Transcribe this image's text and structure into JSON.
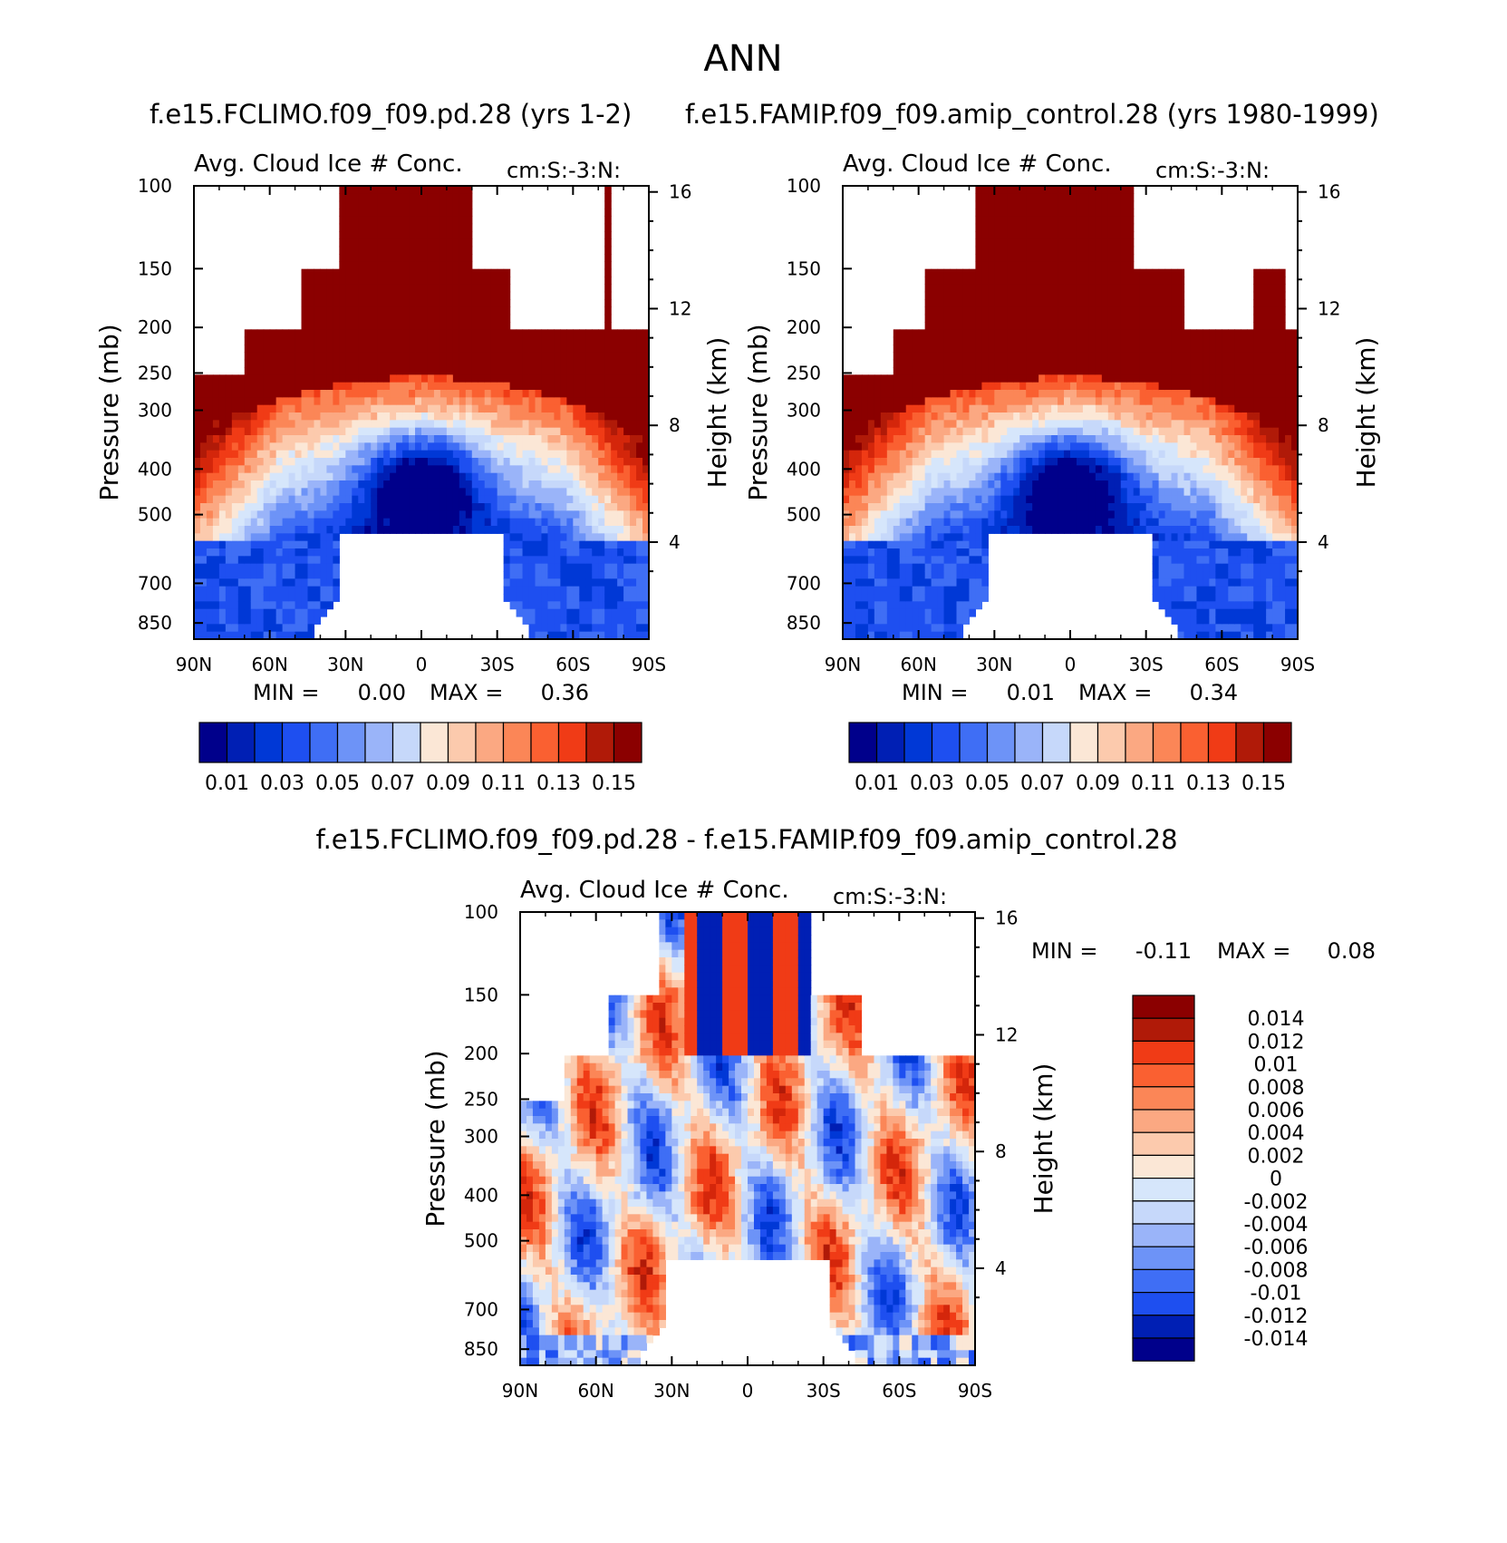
{
  "figure": {
    "title": "ANN",
    "panel_a_title": "f.e15.FCLIMO.f09_f09.pd.28 (yrs 1-2)",
    "panel_b_title": "f.e15.FAMIP.f09_f09.amip_control.28 (yrs 1980-1999)",
    "panel_c_title": "f.e15.FCLIMO.f09_f09.pd.28 - f.e15.FAMIP.f09_f09.amip_control.28"
  },
  "chart_data": [
    {
      "id": "a",
      "type": "heatmap",
      "title": "Avg. Cloud Ice # Conc.",
      "units": "cm:S:-3:N:",
      "xlabel": "",
      "ylabel": "Pressure (mb)",
      "ylabel_right": "Height (km)",
      "xticks": [
        "90N",
        "60N",
        "30N",
        "0",
        "30S",
        "60S",
        "90S"
      ],
      "yticks": [
        100,
        150,
        200,
        250,
        300,
        400,
        500,
        700,
        850
      ],
      "yticks_right": [
        16,
        12,
        8,
        4
      ],
      "stats": {
        "min_label": "MIN =",
        "min": "0.00",
        "max_label": "MAX =",
        "max": "0.36"
      },
      "colorbar": {
        "labels": [
          "0.01",
          "0.03",
          "0.05",
          "0.07",
          "0.09",
          "0.11",
          "0.13",
          "0.15"
        ],
        "levels": [
          0.01,
          0.02,
          0.03,
          0.04,
          0.05,
          0.06,
          0.07,
          0.08,
          0.09,
          0.1,
          0.11,
          0.12,
          0.13,
          0.14,
          0.15
        ]
      }
    },
    {
      "id": "b",
      "type": "heatmap",
      "title": "Avg. Cloud Ice # Conc.",
      "units": "cm:S:-3:N:",
      "xlabel": "",
      "ylabel": "Pressure (mb)",
      "ylabel_right": "Height (km)",
      "xticks": [
        "90N",
        "60N",
        "30N",
        "0",
        "30S",
        "60S",
        "90S"
      ],
      "yticks": [
        100,
        150,
        200,
        250,
        300,
        400,
        500,
        700,
        850
      ],
      "yticks_right": [
        16,
        12,
        8,
        4
      ],
      "stats": {
        "min_label": "MIN =",
        "min": "0.01",
        "max_label": "MAX =",
        "max": "0.34"
      },
      "colorbar": {
        "labels": [
          "0.01",
          "0.03",
          "0.05",
          "0.07",
          "0.09",
          "0.11",
          "0.13",
          "0.15"
        ],
        "levels": [
          0.01,
          0.02,
          0.03,
          0.04,
          0.05,
          0.06,
          0.07,
          0.08,
          0.09,
          0.1,
          0.11,
          0.12,
          0.13,
          0.14,
          0.15
        ]
      }
    },
    {
      "id": "c",
      "type": "heatmap",
      "title": "Avg. Cloud Ice # Conc.",
      "units": "cm:S:-3:N:",
      "xlabel": "",
      "ylabel": "Pressure (mb)",
      "ylabel_right": "Height (km)",
      "xticks": [
        "90N",
        "60N",
        "30N",
        "0",
        "30S",
        "60S",
        "90S"
      ],
      "yticks": [
        100,
        150,
        200,
        250,
        300,
        400,
        500,
        700,
        850
      ],
      "yticks_right": [
        16,
        12,
        8,
        4
      ],
      "stats": {
        "min_label": "MIN =",
        "min": "-0.11",
        "max_label": "MAX =",
        "max": "0.08"
      },
      "colorbar": {
        "labels": [
          "0.014",
          "0.012",
          "0.01",
          "0.008",
          "0.006",
          "0.004",
          "0.002",
          "0",
          "-0.002",
          "-0.004",
          "-0.006",
          "-0.008",
          "-0.01",
          "-0.012",
          "-0.014"
        ],
        "levels": [
          -0.014,
          -0.012,
          -0.01,
          -0.008,
          -0.006,
          -0.004,
          -0.002,
          0,
          0.002,
          0.004,
          0.006,
          0.008,
          0.01,
          0.012,
          0.014
        ]
      }
    }
  ],
  "palette": [
    "#00008b",
    "#001fb4",
    "#0038d6",
    "#1e4ff0",
    "#3f6ef5",
    "#6d93f7",
    "#9ab4f9",
    "#c6d8fa",
    "#d6e6fb",
    "#fbe7d6",
    "#fccaad",
    "#fba882",
    "#fb8657",
    "#fa6031",
    "#f03b16",
    "#d4260b",
    "#b01a08",
    "#8b0000"
  ]
}
